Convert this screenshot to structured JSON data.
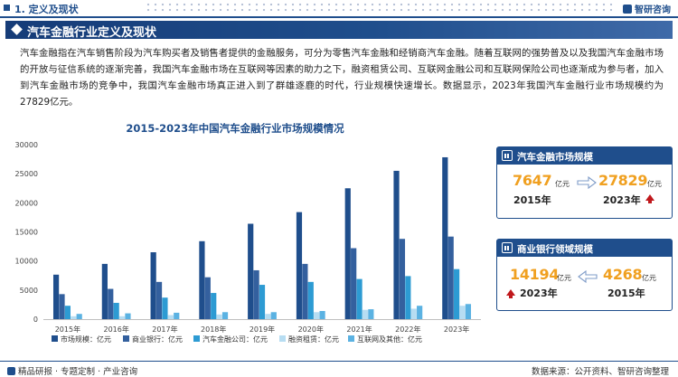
{
  "header": {
    "section": "1. 定义及现状",
    "logo": "智研咨询"
  },
  "section_title": "汽车金融行业定义及现状",
  "paragraph": "汽车金融指在汽车销售阶段为汽车购买者及销售者提供的金融服务，可分为零售汽车金融和经销商汽车金融。随着互联网的强势普及以及我国汽车金融市场的开放与征信系统的逐渐完善，我国汽车金融市场在互联网等因素的助力之下，融资租赁公司、互联网金融公司和互联网保险公司也逐渐成为参与者，加入到汽车金融市场的竞争中，我国汽车金融市场真正进入到了群雄逐鹿的时代，行业规模快速增长。数据显示，2023年我国汽车金融行业市场规模约为27829亿元。",
  "chart_data": {
    "type": "bar",
    "title": "2015-2023年中国汽车金融行业市场规模情况",
    "categories": [
      "2015年",
      "2016年",
      "2017年",
      "2018年",
      "2019年",
      "2020年",
      "2021年",
      "2022年",
      "2023年"
    ],
    "ylim": [
      0,
      30000
    ],
    "yticks": [
      0,
      5000,
      10000,
      15000,
      20000,
      25000,
      30000
    ],
    "legend_position": "bottom",
    "series": [
      {
        "name": "市场规模：亿元",
        "color": "#1f4e8c",
        "values": [
          7647,
          9500,
          11500,
          13400,
          16400,
          18400,
          22500,
          25500,
          27829
        ]
      },
      {
        "name": "商业银行：亿元",
        "color": "#34609e",
        "values": [
          4300,
          5200,
          6400,
          7200,
          8400,
          9500,
          12200,
          13800,
          14194
        ]
      },
      {
        "name": "汽车金融公司：亿元",
        "color": "#2d9bd3",
        "values": [
          2300,
          2800,
          3700,
          4500,
          5900,
          6400,
          6900,
          7400,
          8600
        ]
      },
      {
        "name": "融资租赁：亿元",
        "color": "#b7ddf2",
        "values": [
          500,
          500,
          700,
          800,
          900,
          1200,
          1600,
          1800,
          2300
        ]
      },
      {
        "name": "互联网及其他：亿元",
        "color": "#5bb2e2",
        "values": [
          900,
          1000,
          1100,
          1200,
          1200,
          1400,
          1700,
          2300,
          2600
        ]
      }
    ]
  },
  "card_market": {
    "title": "汽车金融市场规模",
    "from_value": "7647",
    "from_unit": "亿元",
    "from_year": "2015年",
    "to_value": "27829",
    "to_unit": "亿元",
    "to_year": "2023年"
  },
  "card_bank": {
    "title": "商业银行领域规模",
    "left_value": "14194",
    "left_unit": "亿元",
    "left_year": "2023年",
    "right_value": "4268",
    "right_unit": "亿元",
    "right_year": "2015年"
  },
  "footer": {
    "left": "精品研报 · 专题定制 · 产业咨询",
    "right": "数据来源：公开资料、智研咨询整理"
  },
  "colors": {
    "primary": "#1f4e8c",
    "accent": "#f0a020",
    "up": "#c0181c"
  }
}
